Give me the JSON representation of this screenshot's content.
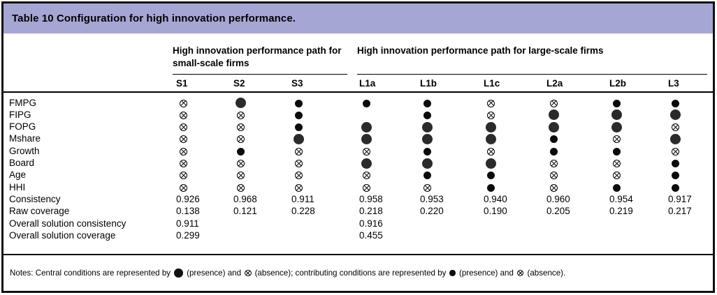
{
  "title": "Table 10 Configuration for high innovation performance.",
  "colors": {
    "header_bg": "#a5a6d4",
    "text": "#000000",
    "symbol_fill": "#1a1a1a"
  },
  "table": {
    "groups": [
      {
        "label": "High innovation performance path for small-scale firms",
        "columns": [
          "S1",
          "S2",
          "S3"
        ]
      },
      {
        "label": "High innovation performance path for large-scale firms",
        "columns": [
          "L1a",
          "L1b",
          "L1c",
          "L2a",
          "L2b",
          "L3"
        ]
      }
    ],
    "columns": [
      "S1",
      "S2",
      "S3",
      "L1a",
      "L1b",
      "L1c",
      "L2a",
      "L2b",
      "L3"
    ],
    "symbol_legend": {
      "CP": "central condition presence (large filled circle)",
      "P": "contributing condition presence (small filled circle)",
      "A": "condition absence (crossed-out circle)",
      "": "blank (condition not in configuration)"
    },
    "rows": [
      {
        "label": "FMPG",
        "cells": [
          "A",
          "CP",
          "P",
          "P",
          "P",
          "A",
          "A",
          "P",
          "P"
        ]
      },
      {
        "label": "FIPG",
        "cells": [
          "A",
          "A",
          "P",
          "",
          "P",
          "A",
          "CP",
          "CP",
          "CP"
        ]
      },
      {
        "label": "FOPG",
        "cells": [
          "A",
          "A",
          "P",
          "CP",
          "CP",
          "CP",
          "CP",
          "CP",
          "A"
        ]
      },
      {
        "label": "Mshare",
        "cells": [
          "A",
          "A",
          "CP",
          "CP",
          "CP",
          "CP",
          "P",
          "A",
          "CP"
        ]
      },
      {
        "label": "Growth",
        "cells": [
          "A",
          "P",
          "A",
          "A",
          "P",
          "A",
          "P",
          "P",
          "A"
        ]
      },
      {
        "label": "Board",
        "cells": [
          "A",
          "A",
          "A",
          "CP",
          "CP",
          "CP",
          "A",
          "A",
          "P"
        ]
      },
      {
        "label": "Age",
        "cells": [
          "A",
          "A",
          "A",
          "A",
          "P",
          "P",
          "A",
          "A",
          "P"
        ]
      },
      {
        "label": "HHI",
        "cells": [
          "A",
          "A",
          "A",
          "A",
          "A",
          "P",
          "A",
          "P",
          "P"
        ]
      },
      {
        "label": "Consistency",
        "cells": [
          "0.926",
          "0.968",
          "0.911",
          "0.958",
          "0.953",
          "0.940",
          "0.960",
          "0.954",
          "0.917"
        ]
      },
      {
        "label": "Raw coverage",
        "cells": [
          "0.138",
          "0.121",
          "0.228",
          "0.218",
          "0.220",
          "0.190",
          "0.205",
          "0.219",
          "0.217"
        ]
      },
      {
        "label": "Overall solution consistency",
        "cells": [
          "0.911",
          "",
          "",
          "0.916",
          "",
          "",
          "",
          "",
          ""
        ]
      },
      {
        "label": "Overall solution coverage",
        "cells": [
          "0.299",
          "",
          "",
          "0.455",
          "",
          "",
          "",
          "",
          ""
        ]
      }
    ]
  },
  "notes": {
    "part1": "Notes: Central conditions are represented by",
    "part2": "(presence) and",
    "part3": "(absence); contributing conditions are represented by",
    "part4": "(presence) and",
    "part5": "(absence)."
  }
}
